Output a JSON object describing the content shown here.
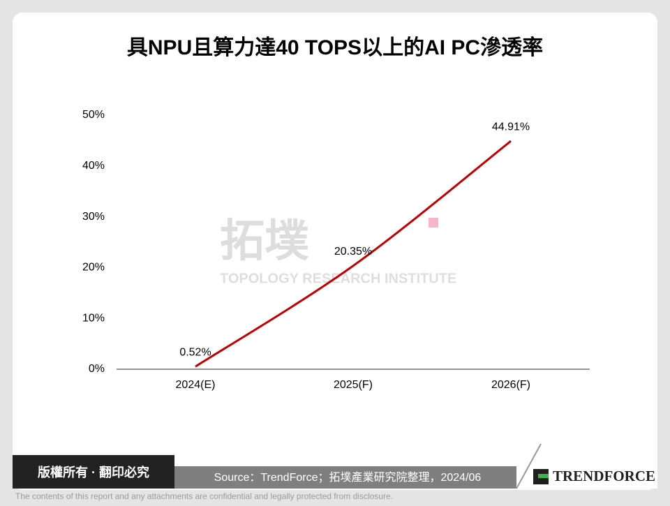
{
  "chart_data": {
    "type": "line",
    "title": "具NPU且算力達40 TOPS以上的AI PC滲透率",
    "categories": [
      "2024(E)",
      "2025(F)",
      "2026(F)"
    ],
    "values": [
      0.52,
      20.35,
      44.91
    ],
    "value_labels": [
      "0.52%",
      "20.35%",
      "44.91%"
    ],
    "color": "#c00000",
    "ylim": [
      0,
      50
    ],
    "yticks": [
      {
        "value": 0,
        "label": "0%"
      },
      {
        "value": 10,
        "label": "10%"
      },
      {
        "value": 20,
        "label": "20%"
      },
      {
        "value": 30,
        "label": "30%"
      },
      {
        "value": 40,
        "label": "40%"
      },
      {
        "value": 50,
        "label": "50%"
      }
    ],
    "grid": false
  },
  "watermark": {
    "logo": "拓墣",
    "name": "TOPOLOGY RESEARCH INSTITUTE"
  },
  "footer": {
    "copyright": "版權所有 · 翻印必究",
    "source": "Source：TrendForce；拓墣產業研究院整理，2024/06",
    "brand": "TRENDFORCE",
    "disclaimer": "The contents of this report and any attachments are confidential and legally protected from disclosure."
  }
}
